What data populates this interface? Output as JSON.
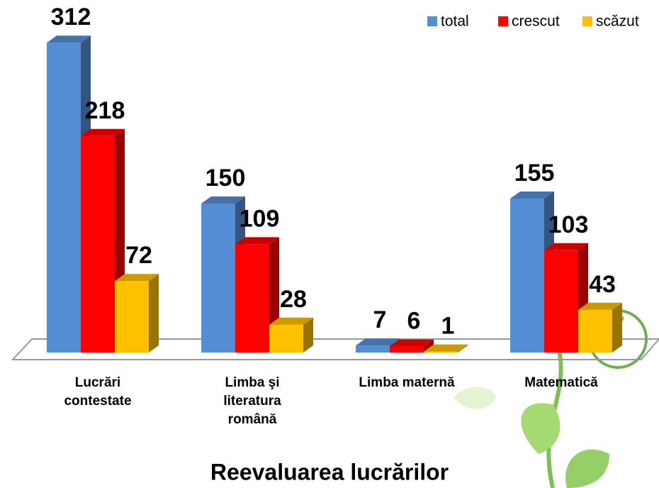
{
  "chart_data": {
    "type": "bar3d",
    "title": "Reevaluarea lucrărilor",
    "categories": [
      "Lucrări contestate",
      "Limba şi literatura română",
      "Limba maternă",
      "Matematică"
    ],
    "series": [
      {
        "name": "total",
        "color": "#558ed5",
        "values": [
          312,
          150,
          7,
          155
        ]
      },
      {
        "name": "crescut",
        "color": "#ff0000",
        "values": [
          218,
          109,
          6,
          103
        ]
      },
      {
        "name": "scăzut",
        "color": "#ffc000",
        "values": [
          72,
          28,
          1,
          43
        ]
      }
    ],
    "legend": "top-right"
  }
}
